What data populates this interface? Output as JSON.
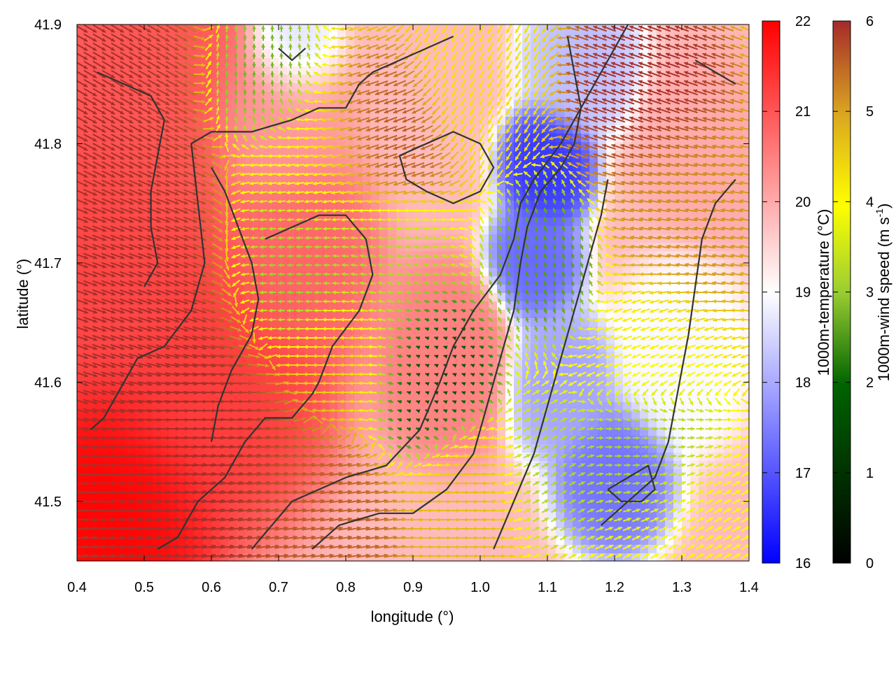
{
  "chart_data": {
    "type": "heatmap",
    "subtype": "temperature field with wind vector overlay and coastline",
    "xlabel": "longitude (°)",
    "ylabel": "latitude (°)",
    "xlim": [
      0.4,
      1.4
    ],
    "ylim": [
      41.45,
      41.9
    ],
    "xticks": [
      "0.4",
      "0.5",
      "0.6",
      "0.7",
      "0.8",
      "0.9",
      "1.0",
      "1.1",
      "1.2",
      "1.3",
      "1.4"
    ],
    "yticks": [
      "41.5",
      "41.6",
      "41.7",
      "41.8",
      "41.9"
    ],
    "grid": false,
    "temperature_colorbar": {
      "label": "1000m-temperature (°C)",
      "range": [
        16,
        22
      ],
      "ticks": [
        "16",
        "17",
        "18",
        "19",
        "20",
        "21",
        "22"
      ],
      "colors": [
        "#0000ff",
        "#ffffff",
        "#ff0000"
      ]
    },
    "wind_colorbar": {
      "label_main": "1000m-wind speed (m s",
      "label_sup": "-1",
      "label_end": ")",
      "range": [
        0,
        6
      ],
      "ticks": [
        "0",
        "1",
        "2",
        "3",
        "4",
        "5",
        "6"
      ],
      "colors": [
        "#000000",
        "#006400",
        "#9acd32",
        "#ffff00",
        "#daa520",
        "#a52a2a"
      ]
    },
    "temperature_blobs": [
      {
        "lon": 0.45,
        "lat": 41.5,
        "t": 22.0,
        "r": 0.09
      },
      {
        "lon": 0.42,
        "lat": 41.7,
        "t": 21.2,
        "r": 0.12
      },
      {
        "lon": 0.5,
        "lat": 41.85,
        "t": 21.0,
        "r": 0.1
      },
      {
        "lon": 0.6,
        "lat": 41.6,
        "t": 21.3,
        "r": 0.1
      },
      {
        "lon": 0.72,
        "lat": 41.7,
        "t": 20.8,
        "r": 0.07
      },
      {
        "lon": 0.95,
        "lat": 41.62,
        "t": 20.5,
        "r": 0.06
      },
      {
        "lon": 0.7,
        "lat": 41.82,
        "t": 20.2,
        "r": 0.06
      },
      {
        "lon": 1.1,
        "lat": 41.78,
        "t": 16.6,
        "r": 0.04
      },
      {
        "lon": 1.08,
        "lat": 41.7,
        "t": 17.2,
        "r": 0.04
      },
      {
        "lon": 1.12,
        "lat": 41.6,
        "t": 17.9,
        "r": 0.05
      },
      {
        "lon": 1.2,
        "lat": 41.52,
        "t": 17.3,
        "r": 0.05
      },
      {
        "lon": 1.15,
        "lat": 41.87,
        "t": 18.2,
        "r": 0.05
      },
      {
        "lon": 0.72,
        "lat": 41.88,
        "t": 18.6,
        "r": 0.04
      },
      {
        "lon": 1.3,
        "lat": 41.62,
        "t": 18.9,
        "r": 0.06
      },
      {
        "lon": 1.35,
        "lat": 41.8,
        "t": 20.0,
        "r": 0.06
      }
    ],
    "wind_zones": [
      {
        "lon": 0.45,
        "lat": 41.65,
        "speed": 6.0,
        "dir": -20,
        "r": 0.14
      },
      {
        "lon": 0.4,
        "lat": 41.85,
        "speed": 6.0,
        "dir": -30,
        "r": 0.1
      },
      {
        "lon": 0.55,
        "lat": 41.5,
        "speed": 6.0,
        "dir": 10,
        "r": 0.12
      },
      {
        "lon": 0.75,
        "lat": 41.48,
        "speed": 5.5,
        "dir": 10,
        "r": 0.08
      },
      {
        "lon": 0.8,
        "lat": 41.62,
        "speed": 4.2,
        "dir": 180,
        "r": 0.06
      },
      {
        "lon": 0.72,
        "lat": 41.7,
        "speed": 2.2,
        "dir": 180,
        "r": 0.07
      },
      {
        "lon": 0.85,
        "lat": 41.7,
        "speed": 2.6,
        "dir": 170,
        "r": 0.06
      },
      {
        "lon": 0.92,
        "lat": 41.6,
        "speed": 0.8,
        "dir": 160,
        "r": 0.06
      },
      {
        "lon": 0.75,
        "lat": 41.78,
        "speed": 3.8,
        "dir": 190,
        "r": 0.07
      },
      {
        "lon": 0.85,
        "lat": 41.8,
        "speed": 5.6,
        "dir": 200,
        "r": 0.06
      },
      {
        "lon": 0.68,
        "lat": 41.85,
        "speed": 2.0,
        "dir": 90,
        "r": 0.05
      },
      {
        "lon": 1.0,
        "lat": 41.86,
        "speed": 4.0,
        "dir": -120,
        "r": 0.06
      },
      {
        "lon": 1.1,
        "lat": 41.7,
        "speed": 1.8,
        "dir": 110,
        "r": 0.05
      },
      {
        "lon": 1.25,
        "lat": 41.85,
        "speed": 6.0,
        "dir": 160,
        "r": 0.07
      },
      {
        "lon": 1.3,
        "lat": 41.75,
        "speed": 5.0,
        "dir": 170,
        "r": 0.07
      },
      {
        "lon": 1.25,
        "lat": 41.62,
        "speed": 3.8,
        "dir": 200,
        "r": 0.06
      },
      {
        "lon": 1.25,
        "lat": 41.55,
        "speed": 2.4,
        "dir": 0,
        "r": 0.06
      },
      {
        "lon": 1.1,
        "lat": 41.52,
        "speed": 2.6,
        "dir": 30,
        "r": 0.05
      },
      {
        "lon": 0.98,
        "lat": 41.5,
        "speed": 4.5,
        "dir": 0,
        "r": 0.06
      },
      {
        "lon": 1.3,
        "lat": 41.48,
        "speed": 3.5,
        "dir": 30,
        "r": 0.06
      }
    ],
    "coastlines": [
      [
        [
          0.42,
          41.56
        ],
        [
          0.44,
          41.57
        ],
        [
          0.47,
          41.6
        ],
        [
          0.49,
          41.62
        ],
        [
          0.53,
          41.63
        ],
        [
          0.57,
          41.66
        ],
        [
          0.59,
          41.7
        ],
        [
          0.58,
          41.75
        ],
        [
          0.57,
          41.8
        ],
        [
          0.6,
          41.81
        ],
        [
          0.66,
          41.81
        ],
        [
          0.72,
          41.82
        ],
        [
          0.76,
          41.83
        ],
        [
          0.8,
          41.83
        ],
        [
          0.82,
          41.85
        ],
        [
          0.84,
          41.86
        ],
        [
          0.88,
          41.87
        ],
        [
          0.92,
          41.88
        ],
        [
          0.96,
          41.89
        ]
      ],
      [
        [
          0.52,
          41.46
        ],
        [
          0.55,
          41.47
        ],
        [
          0.58,
          41.5
        ],
        [
          0.62,
          41.52
        ],
        [
          0.65,
          41.55
        ],
        [
          0.68,
          41.57
        ],
        [
          0.72,
          41.57
        ],
        [
          0.75,
          41.59
        ],
        [
          0.76,
          41.6
        ],
        [
          0.78,
          41.63
        ],
        [
          0.82,
          41.66
        ],
        [
          0.84,
          41.69
        ],
        [
          0.83,
          41.72
        ],
        [
          0.8,
          41.74
        ],
        [
          0.76,
          41.74
        ],
        [
          0.72,
          41.73
        ],
        [
          0.68,
          41.72
        ]
      ],
      [
        [
          0.66,
          41.46
        ],
        [
          0.69,
          41.48
        ],
        [
          0.72,
          41.5
        ],
        [
          0.76,
          41.51
        ],
        [
          0.8,
          41.52
        ],
        [
          0.86,
          41.53
        ],
        [
          0.91,
          41.56
        ],
        [
          0.94,
          41.6
        ],
        [
          0.96,
          41.63
        ],
        [
          0.99,
          41.66
        ],
        [
          1.03,
          41.69
        ],
        [
          1.05,
          41.72
        ],
        [
          1.06,
          41.75
        ],
        [
          1.08,
          41.77
        ],
        [
          1.12,
          41.8
        ],
        [
          1.14,
          41.82
        ],
        [
          1.16,
          41.84
        ],
        [
          1.18,
          41.86
        ],
        [
          1.2,
          41.88
        ],
        [
          1.22,
          41.9
        ]
      ],
      [
        [
          0.75,
          41.46
        ],
        [
          0.79,
          41.48
        ],
        [
          0.85,
          41.49
        ],
        [
          0.9,
          41.49
        ],
        [
          0.95,
          41.51
        ],
        [
          0.99,
          41.54
        ],
        [
          1.01,
          41.58
        ],
        [
          1.03,
          41.62
        ],
        [
          1.05,
          41.66
        ],
        [
          1.06,
          41.7
        ],
        [
          1.07,
          41.73
        ],
        [
          1.09,
          41.76
        ],
        [
          1.12,
          41.78
        ],
        [
          1.14,
          41.8
        ],
        [
          1.15,
          41.83
        ],
        [
          1.14,
          41.86
        ],
        [
          1.13,
          41.89
        ]
      ],
      [
        [
          1.02,
          41.46
        ],
        [
          1.05,
          41.5
        ],
        [
          1.08,
          41.54
        ],
        [
          1.1,
          41.58
        ],
        [
          1.12,
          41.62
        ],
        [
          1.14,
          41.66
        ],
        [
          1.16,
          41.7
        ],
        [
          1.18,
          41.74
        ],
        [
          1.19,
          41.77
        ]
      ],
      [
        [
          1.18,
          41.48
        ],
        [
          1.22,
          41.5
        ],
        [
          1.26,
          41.52
        ],
        [
          1.28,
          41.55
        ],
        [
          1.29,
          41.58
        ],
        [
          1.3,
          41.61
        ],
        [
          1.31,
          41.64
        ],
        [
          1.32,
          41.68
        ],
        [
          1.33,
          41.72
        ],
        [
          1.35,
          41.75
        ],
        [
          1.38,
          41.77
        ]
      ],
      [
        [
          0.43,
          41.86
        ],
        [
          0.47,
          41.85
        ],
        [
          0.51,
          41.84
        ],
        [
          0.53,
          41.82
        ],
        [
          0.52,
          41.79
        ],
        [
          0.51,
          41.76
        ],
        [
          0.51,
          41.73
        ],
        [
          0.52,
          41.7
        ],
        [
          0.5,
          41.68
        ]
      ],
      [
        [
          0.6,
          41.78
        ],
        [
          0.62,
          41.76
        ],
        [
          0.64,
          41.73
        ],
        [
          0.66,
          41.7
        ],
        [
          0.67,
          41.67
        ],
        [
          0.66,
          41.64
        ],
        [
          0.63,
          41.61
        ],
        [
          0.61,
          41.58
        ],
        [
          0.6,
          41.55
        ]
      ],
      [
        [
          0.88,
          41.79
        ],
        [
          0.92,
          41.8
        ],
        [
          0.96,
          41.81
        ],
        [
          1.0,
          41.8
        ],
        [
          1.02,
          41.78
        ],
        [
          1.0,
          41.76
        ],
        [
          0.96,
          41.75
        ],
        [
          0.92,
          41.76
        ],
        [
          0.89,
          41.77
        ],
        [
          0.88,
          41.79
        ]
      ],
      [
        [
          1.19,
          41.51
        ],
        [
          1.22,
          41.52
        ],
        [
          1.25,
          41.53
        ],
        [
          1.26,
          41.51
        ],
        [
          1.24,
          41.5
        ],
        [
          1.21,
          41.5
        ],
        [
          1.19,
          41.51
        ]
      ],
      [
        [
          0.7,
          41.88
        ],
        [
          0.72,
          41.87
        ],
        [
          0.74,
          41.88
        ]
      ],
      [
        [
          1.32,
          41.87
        ],
        [
          1.35,
          41.86
        ],
        [
          1.38,
          41.85
        ]
      ]
    ]
  }
}
